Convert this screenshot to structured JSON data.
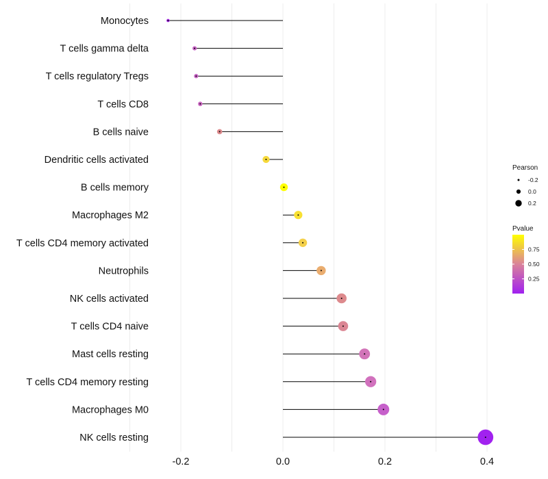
{
  "chart_data": {
    "type": "lollipop",
    "title": "",
    "xlabel": "",
    "ylabel": "",
    "xlim": [
      -0.3,
      0.42
    ],
    "x_ticks": [
      -0.2,
      0.0,
      0.2,
      0.4
    ],
    "x_tick_labels": [
      "-0.2",
      "0.0",
      "0.2",
      "0.4"
    ],
    "grid": true,
    "categories": [
      "Monocytes",
      "T cells gamma delta",
      "T cells regulatory  Tregs",
      "T cells CD8",
      "B cells naive",
      "Dendritic cells activated",
      "B cells memory",
      "Macrophages M2",
      "T cells CD4 memory activated",
      "Neutrophils",
      "NK cells activated",
      "T cells CD4 naive",
      "Mast cells resting",
      "T cells CD4 memory resting",
      "Macrophages M0",
      "NK cells resting"
    ],
    "pearson": [
      -0.225,
      -0.173,
      -0.17,
      -0.162,
      -0.124,
      -0.033,
      0.002,
      0.03,
      0.039,
      0.075,
      0.115,
      0.118,
      0.16,
      0.172,
      0.197,
      0.397
    ],
    "pvalue": [
      0.05,
      0.3,
      0.3,
      0.32,
      0.55,
      0.88,
      1.0,
      0.9,
      0.85,
      0.72,
      0.55,
      0.52,
      0.38,
      0.36,
      0.28,
      0.01
    ],
    "size_legend": {
      "title": "Pearson",
      "breaks": [
        -0.2,
        0.0,
        0.2
      ],
      "labels": [
        "-0.2",
        "0.0",
        "0.2"
      ]
    },
    "color_legend": {
      "title": "Pvalue",
      "range": [
        0.0,
        1.0
      ],
      "breaks": [
        0.25,
        0.5,
        0.75
      ],
      "labels": [
        "0.25",
        "0.50",
        "0.75"
      ],
      "low_color": "#a020f0",
      "high_color": "#ffff00"
    }
  }
}
